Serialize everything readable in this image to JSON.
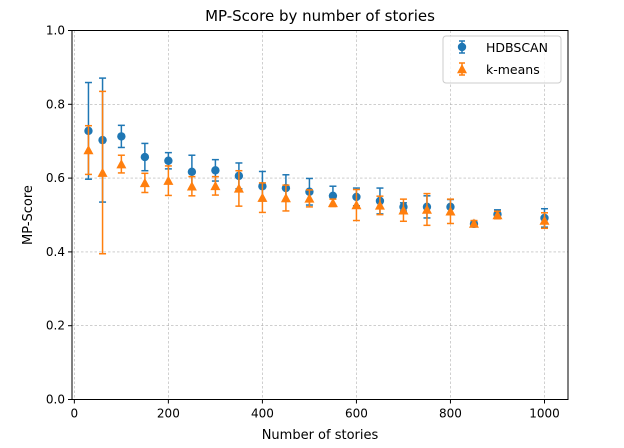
{
  "chart_data": {
    "type": "scatter",
    "title": "MP-Score by number of stories",
    "xlabel": "Number of stories",
    "ylabel": "MP-Score",
    "xlim": [
      -5,
      1050
    ],
    "ylim": [
      0,
      1.0
    ],
    "xticks": [
      0,
      200,
      400,
      600,
      800,
      1000
    ],
    "yticks": [
      0.0,
      0.2,
      0.4,
      0.6,
      0.8,
      1.0
    ],
    "xtick_labels": [
      "0",
      "200",
      "400",
      "600",
      "800",
      "1000"
    ],
    "ytick_labels": [
      "0.0",
      "0.2",
      "0.4",
      "0.6",
      "0.8",
      "1.0"
    ],
    "grid": true,
    "legend_position": "top-right",
    "series": [
      {
        "name": "HDBSCAN",
        "color": "#1f77b4",
        "marker": "circle",
        "x": [
          30,
          60,
          100,
          150,
          200,
          250,
          300,
          350,
          400,
          450,
          500,
          550,
          600,
          650,
          700,
          750,
          800,
          850,
          900,
          1000
        ],
        "y": [
          0.728,
          0.703,
          0.713,
          0.657,
          0.647,
          0.617,
          0.621,
          0.606,
          0.578,
          0.573,
          0.563,
          0.552,
          0.549,
          0.538,
          0.522,
          0.522,
          0.522,
          0.476,
          0.502,
          0.492
        ],
        "err": [
          0.131,
          0.168,
          0.03,
          0.037,
          0.022,
          0.045,
          0.029,
          0.035,
          0.04,
          0.036,
          0.036,
          0.026,
          0.024,
          0.035,
          0.011,
          0.03,
          0.02,
          0.008,
          0.012,
          0.025
        ]
      },
      {
        "name": "k-means",
        "color": "#ff7f0e",
        "marker": "triangle",
        "x": [
          30,
          60,
          100,
          150,
          200,
          250,
          300,
          350,
          400,
          450,
          500,
          550,
          600,
          650,
          700,
          750,
          800,
          850,
          900,
          1000
        ],
        "y": [
          0.676,
          0.615,
          0.638,
          0.587,
          0.593,
          0.578,
          0.579,
          0.572,
          0.547,
          0.546,
          0.545,
          0.533,
          0.527,
          0.526,
          0.513,
          0.515,
          0.51,
          0.477,
          0.5,
          0.485
        ],
        "err": [
          0.066,
          0.22,
          0.024,
          0.026,
          0.04,
          0.026,
          0.025,
          0.048,
          0.04,
          0.035,
          0.023,
          0.01,
          0.042,
          0.025,
          0.03,
          0.043,
          0.033,
          0.008,
          0.01,
          0.021
        ]
      }
    ]
  }
}
